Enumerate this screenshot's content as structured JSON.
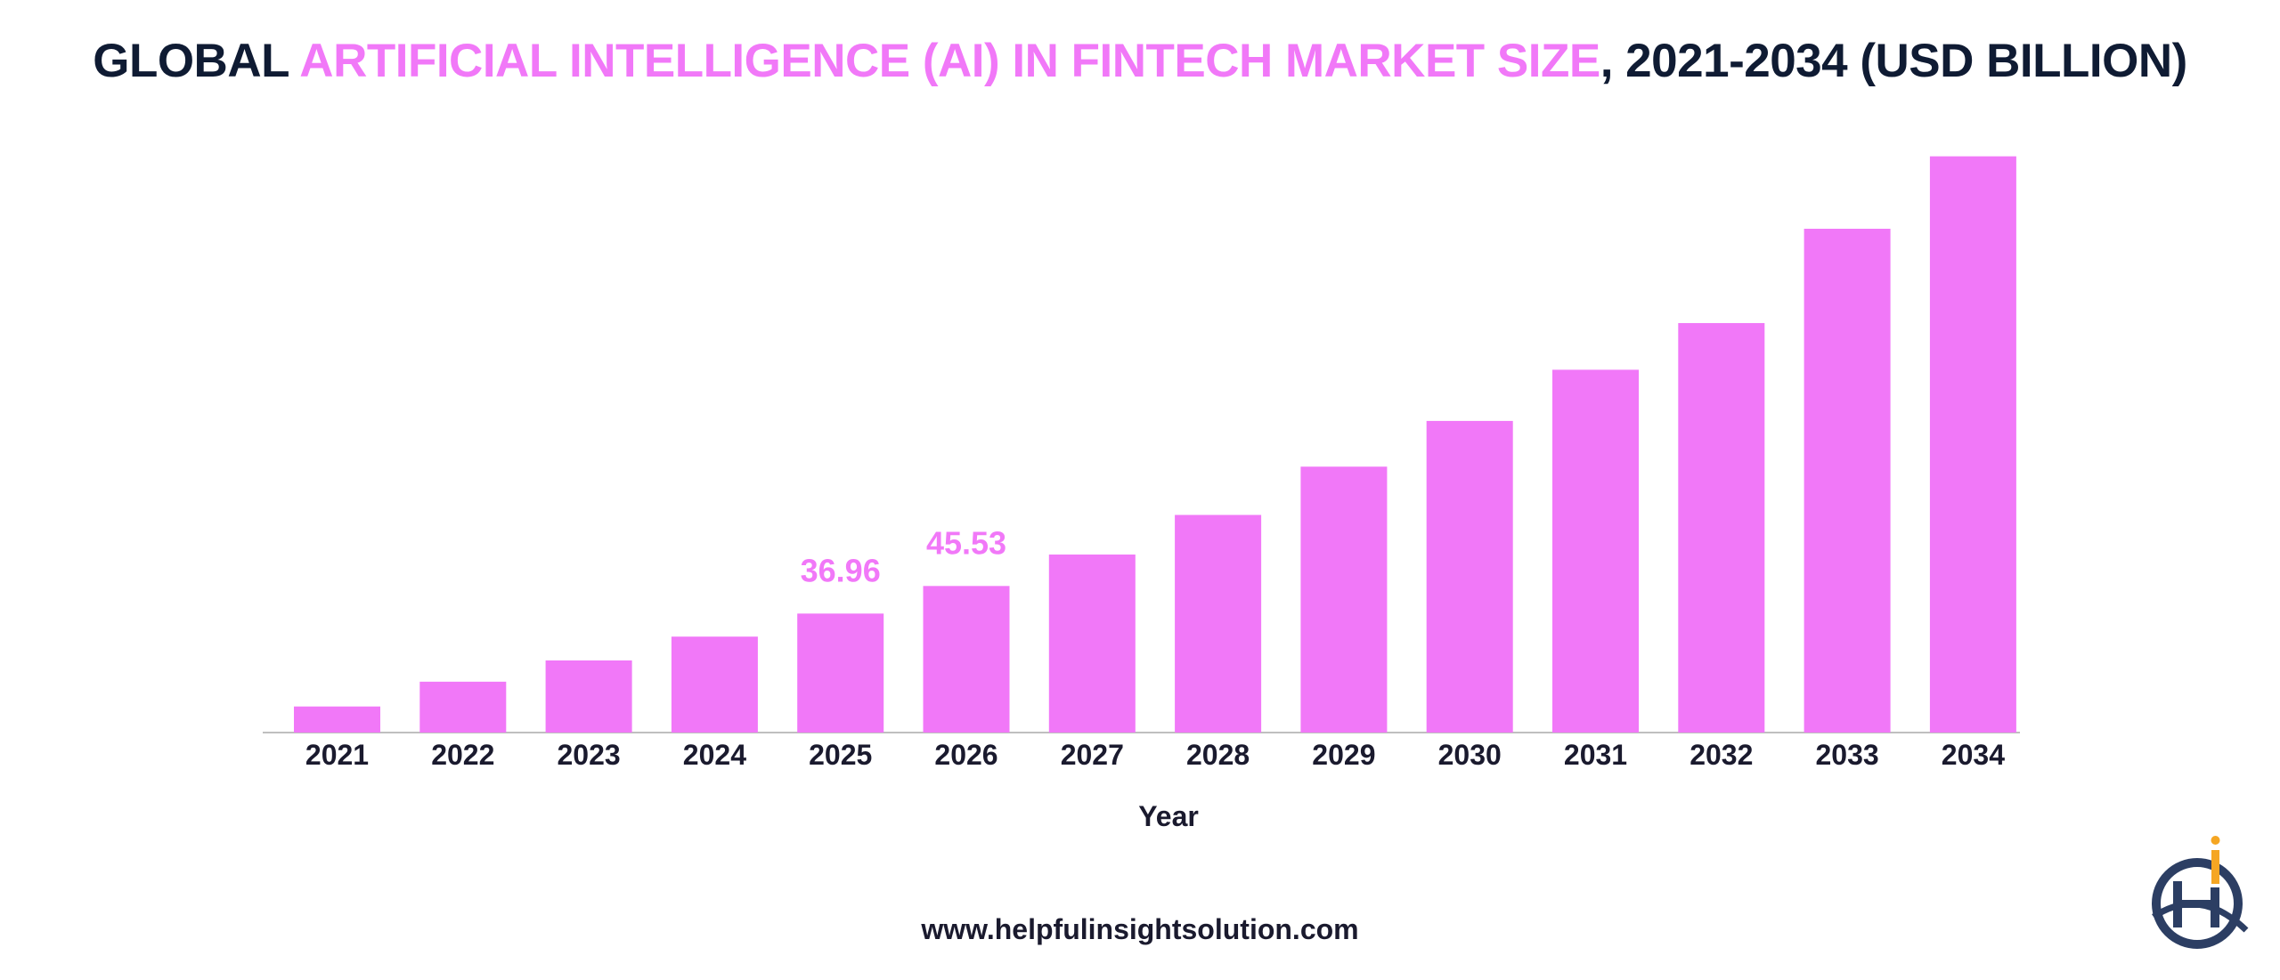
{
  "title": {
    "part1": "GLOBAL ",
    "highlight": "ARTIFICIAL INTELLIGENCE (AI) IN FINTECH MARKET SIZE",
    "part2": ", 2021-2034 (USD BILLION)"
  },
  "footer": {
    "url": "www.helpfulinsightsolution.com"
  },
  "colors": {
    "bar": "#f178f8",
    "text": "#0f1b33",
    "logo_blue": "#2c3e63",
    "logo_orange": "#f5a623"
  },
  "chart_data": {
    "type": "bar",
    "title": "GLOBAL ARTIFICIAL INTELLIGENCE (AI) IN FINTECH MARKET SIZE, 2021-2034 (USD BILLION)",
    "xlabel": "Year",
    "ylabel": "",
    "categories": [
      "2021",
      "2022",
      "2023",
      "2024",
      "2025",
      "2026",
      "2027",
      "2028",
      "2029",
      "2030",
      "2031",
      "2032",
      "2033",
      "2034"
    ],
    "values": [
      8.1,
      15.8,
      22.4,
      29.8,
      36.96,
      45.53,
      55.3,
      67.6,
      82.6,
      96.8,
      112.7,
      127.2,
      156.5,
      179.0
    ],
    "data_labels": [
      null,
      null,
      null,
      null,
      "36.96",
      "45.53",
      null,
      null,
      null,
      null,
      null,
      null,
      null,
      null
    ],
    "ylim": [
      0,
      180
    ],
    "grid": false,
    "y_axis_visible": false
  }
}
